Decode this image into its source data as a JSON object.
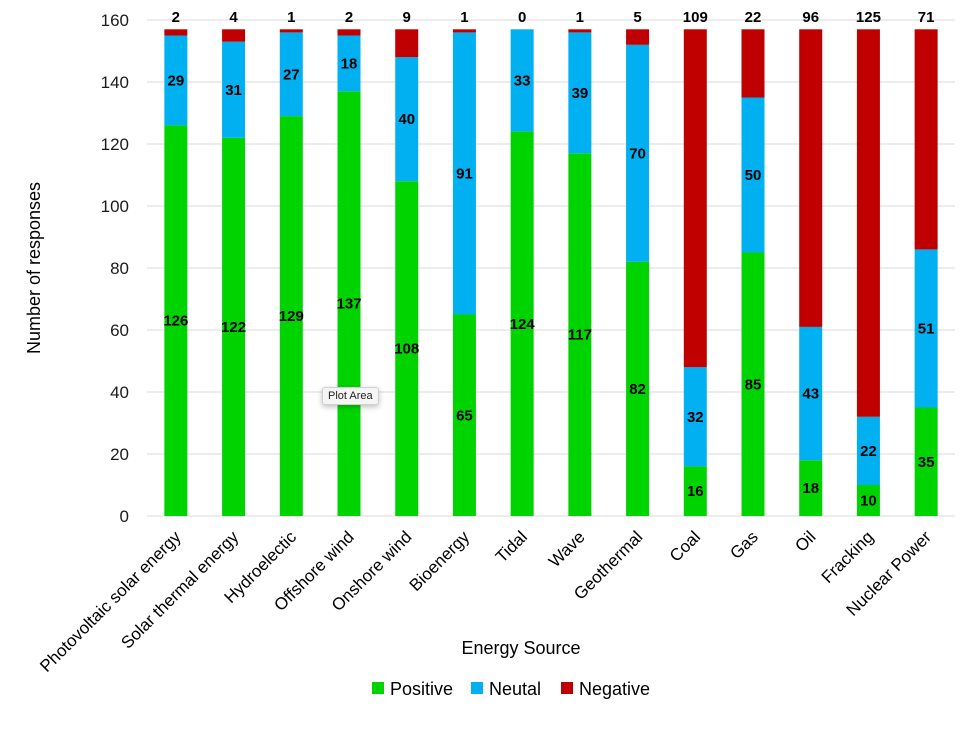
{
  "chart_data": {
    "type": "bar",
    "stacked": true,
    "title": "",
    "xlabel": "Energy Source",
    "ylabel": "Number of responses",
    "ylim": [
      0,
      160
    ],
    "yticks": [
      0,
      20,
      40,
      60,
      80,
      100,
      120,
      140,
      160
    ],
    "grid": true,
    "legend_position": "bottom",
    "categories": [
      "Photovoltaic solar energy",
      "Solar thermal energy",
      "Hydroelectic",
      "Offshore wind",
      "Onshore wind",
      "Bioenergy",
      "Tidal",
      "Wave",
      "Geothermal",
      "Coal",
      "Gas",
      "Oil",
      "Fracking",
      "Nuclear Power"
    ],
    "series": [
      {
        "name": "Positive",
        "color": "#00d400",
        "values": [
          126,
          122,
          129,
          137,
          108,
          65,
          124,
          117,
          82,
          16,
          85,
          18,
          10,
          35
        ]
      },
      {
        "name": "Neutal",
        "color": "#00b0f0",
        "values": [
          29,
          31,
          27,
          18,
          40,
          91,
          33,
          39,
          70,
          32,
          50,
          43,
          22,
          51
        ]
      },
      {
        "name": "Negative",
        "color": "#c00000",
        "values": [
          2,
          4,
          1,
          2,
          9,
          1,
          0,
          1,
          5,
          109,
          22,
          96,
          125,
          71
        ]
      }
    ]
  },
  "tooltip": {
    "text": "Plot Area"
  }
}
